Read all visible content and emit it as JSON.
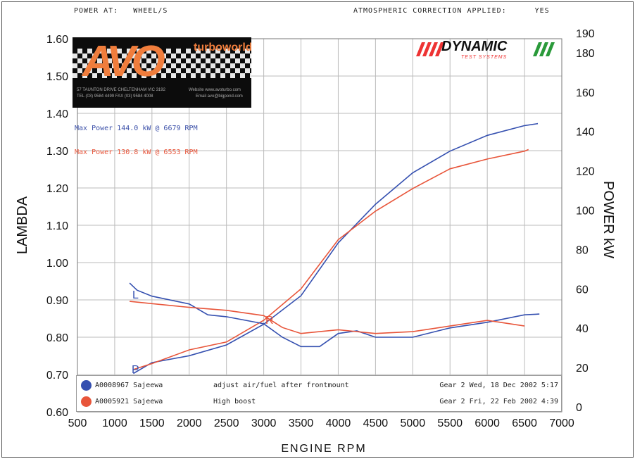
{
  "header": {
    "power_at_label": "POWER AT:",
    "power_at_value": "WHEEL/S",
    "atmos_label": "ATMOSPHERIC CORRECTION APPLIED:",
    "atmos_value": "YES"
  },
  "logo": {
    "brand": "AVO",
    "sub": "turboworld",
    "address": "57 TAUNTON DRIVE CHELTENHAM VIC 3192",
    "phone": "TEL (03) 9584 4499   FAX (03) 9584 4008",
    "website": "Website  www.avoturbo.com",
    "email": "Email  avo@bigpond.com"
  },
  "dynamic_logo": {
    "title": "DYNAMIC",
    "subtitle": "TEST SYSTEMS"
  },
  "max_power": [
    {
      "text": "Max Power 144.0 kW @ 6679 RPM",
      "color": "#3a4fa8"
    },
    {
      "text": "Max Power 130.8 kW @ 6553 RPM",
      "color": "#e8553a"
    }
  ],
  "legend": [
    {
      "id": "A0008967 Sajeewa",
      "note": "adjust air/fuel after frontmount",
      "date": "Gear 2 Wed, 18 Dec 2002 5:17",
      "color": "#3550b0"
    },
    {
      "id": "A0005921 Sajeewa",
      "note": "High boost",
      "date": "Gear 2 Fri, 22 Feb 2002 4:39",
      "color": "#e8553a"
    }
  ],
  "chart_data": {
    "type": "line",
    "xlabel": "ENGINE RPM",
    "ylabel_left": "LAMBDA",
    "ylabel_right": "POWER kW",
    "xlim": [
      500,
      7000
    ],
    "ylim_left": [
      0.6,
      1.6
    ],
    "ylim_right": [
      0,
      190
    ],
    "x_ticks": [
      "500",
      "1000",
      "1500",
      "2000",
      "2500",
      "3000",
      "3500",
      "4000",
      "4500",
      "5000",
      "5500",
      "6000",
      "6500",
      "7000"
    ],
    "y_left_ticks": [
      "0.60",
      "0.70",
      "0.80",
      "0.90",
      "1.00",
      "1.10",
      "1.20",
      "1.30",
      "1.40",
      "1.50",
      "1.60"
    ],
    "y_right_ticks": [
      "0",
      "20",
      "40",
      "60",
      "80",
      "100",
      "120",
      "140",
      "160",
      "180",
      "190"
    ],
    "grid": true,
    "curve_labels": {
      "lambda": "L",
      "power": "P",
      "crossover": "R"
    },
    "series": [
      {
        "name": "A0008967 power",
        "axis": "right",
        "color": "#3550b0",
        "x": [
          1250,
          1500,
          2000,
          2500,
          3000,
          3500,
          4000,
          4500,
          5000,
          5500,
          6000,
          6500,
          6679
        ],
        "y": [
          17,
          22.5,
          26,
          31.5,
          42,
          56.5,
          83.4,
          103,
          119,
          130,
          138,
          143,
          144
        ]
      },
      {
        "name": "A0005921 power",
        "axis": "right",
        "color": "#e8553a",
        "x": [
          1250,
          1500,
          2000,
          2500,
          3000,
          3500,
          4000,
          4500,
          5000,
          5500,
          6000,
          6500,
          6553
        ],
        "y": [
          19,
          22,
          29,
          33,
          44,
          60,
          85,
          99.5,
          111,
          121,
          126,
          130,
          130.8
        ]
      },
      {
        "name": "A0008967 lambda",
        "axis": "left",
        "color": "#3550b0",
        "x": [
          1200,
          1300,
          1500,
          2000,
          2250,
          2500,
          3000,
          3250,
          3500,
          3750,
          4000,
          4250,
          4500,
          5000,
          5500,
          6000,
          6500,
          6700
        ],
        "y": [
          0.945,
          0.926,
          0.91,
          0.889,
          0.86,
          0.855,
          0.836,
          0.8,
          0.775,
          0.775,
          0.81,
          0.817,
          0.8,
          0.8,
          0.825,
          0.84,
          0.86,
          0.862
        ]
      },
      {
        "name": "A0005921 lambda",
        "axis": "left",
        "color": "#e8553a",
        "x": [
          1200,
          1500,
          2000,
          2500,
          3000,
          3250,
          3500,
          4000,
          4500,
          5000,
          5500,
          6000,
          6500
        ],
        "y": [
          0.896,
          0.89,
          0.88,
          0.872,
          0.858,
          0.826,
          0.81,
          0.82,
          0.81,
          0.815,
          0.83,
          0.845,
          0.83
        ]
      }
    ]
  }
}
